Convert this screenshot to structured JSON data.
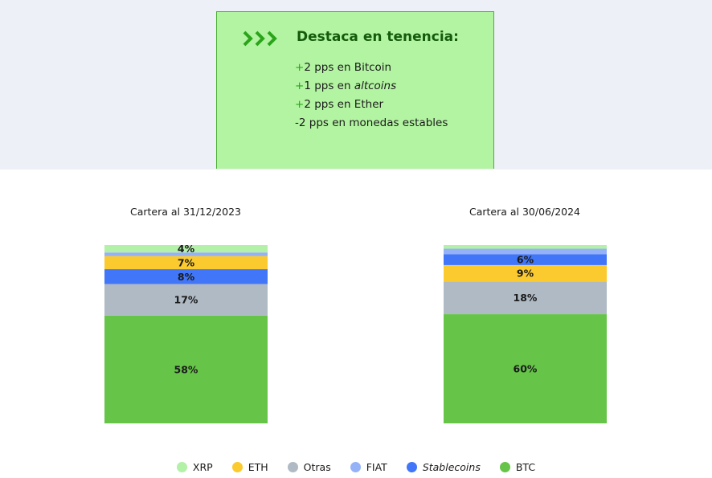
{
  "highlights": {
    "title": "Destaca en tenencia:",
    "items": [
      {
        "sign": "+",
        "text": "2 pps en Bitcoin"
      },
      {
        "sign": "+",
        "text": "1 pps en ",
        "italic": "altcoins"
      },
      {
        "sign": "+",
        "text": "2 pps en Ether"
      },
      {
        "sign": "-",
        "text": "2 pps en monedas estables"
      }
    ]
  },
  "chart_data": [
    {
      "type": "bar",
      "stacked": true,
      "title": "Cartera al 31/12/2023",
      "segments": [
        {
          "name": "BTC",
          "value": 58,
          "label": "58%"
        },
        {
          "name": "Otras",
          "value": 17,
          "label": "17%"
        },
        {
          "name": "Stablecoins",
          "value": 8,
          "label": "8%"
        },
        {
          "name": "ETH",
          "value": 7,
          "label": "7%"
        },
        {
          "name": "FIAT",
          "value": 2,
          "label": ""
        },
        {
          "name": "XRP",
          "value": 4,
          "label": "4%"
        }
      ]
    },
    {
      "type": "bar",
      "stacked": true,
      "title": "Cartera al 30/06/2024",
      "segments": [
        {
          "name": "BTC",
          "value": 60,
          "label": "60%"
        },
        {
          "name": "Otras",
          "value": 18,
          "label": "18%"
        },
        {
          "name": "ETH",
          "value": 9,
          "label": "9%"
        },
        {
          "name": "Stablecoins",
          "value": 6,
          "label": "6%"
        },
        {
          "name": "FIAT",
          "value": 3,
          "label": ""
        },
        {
          "name": "XRP",
          "value": 2,
          "label": ""
        }
      ]
    }
  ],
  "legend": [
    {
      "name": "XRP",
      "color": "#b3f0a8",
      "italic": false
    },
    {
      "name": "ETH",
      "color": "#fbca2e",
      "italic": false
    },
    {
      "name": "Otras",
      "color": "#afbac4",
      "italic": false
    },
    {
      "name": "FIAT",
      "color": "#95b2f8",
      "italic": false
    },
    {
      "name": "Stablecoins",
      "color": "#4176f8",
      "italic": true
    },
    {
      "name": "BTC",
      "color": "#66c449",
      "italic": false
    }
  ]
}
